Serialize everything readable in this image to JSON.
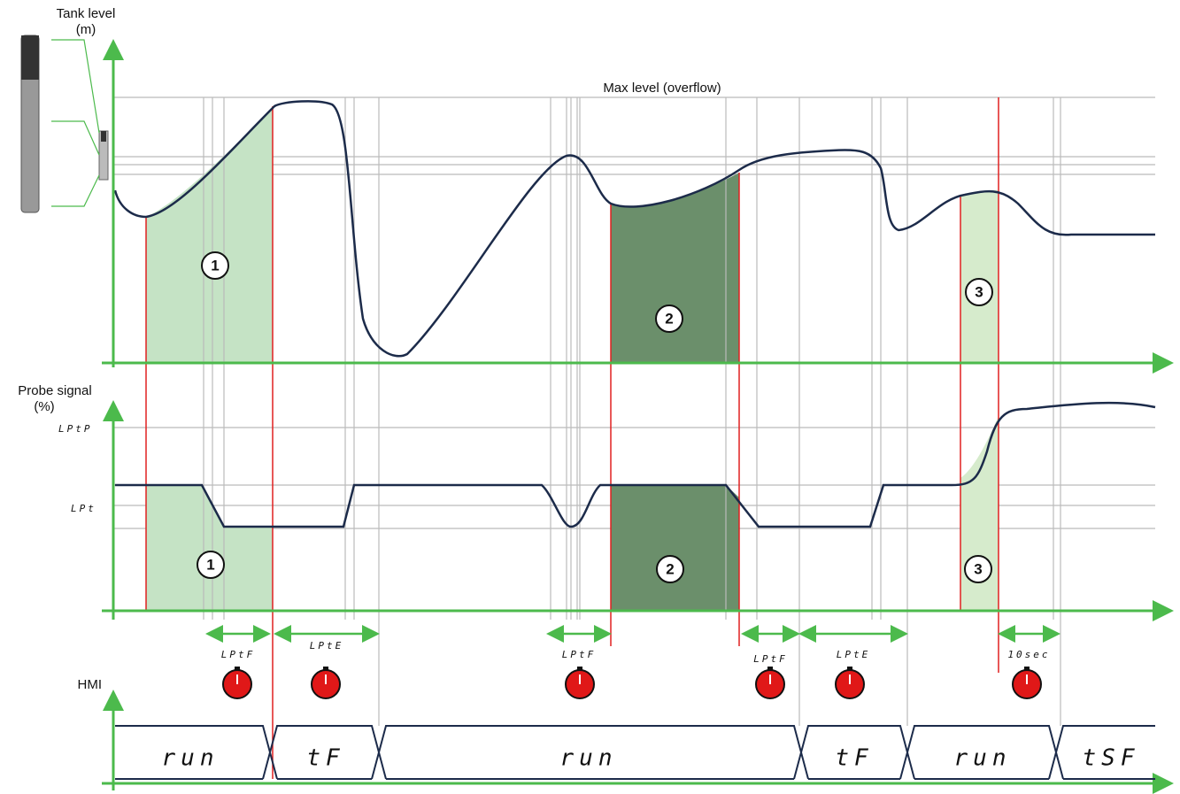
{
  "axes": {
    "tank_level": [
      "Tank level",
      "(m)"
    ],
    "max_level": "Max level (overflow)",
    "probe_signal": [
      "Probe signal",
      "(%)"
    ],
    "hmi": "HMI"
  },
  "probe_levels": [
    "LPtP",
    "LPt"
  ],
  "zones": {
    "top": [
      "1",
      "2",
      "3"
    ],
    "bottom": [
      "1",
      "2",
      "3"
    ]
  },
  "timers": [
    "LPtF",
    "LPtE",
    "LPtF",
    "LPtF",
    "LPtE",
    "10sec"
  ],
  "hmi_states": [
    "run",
    "tF",
    "run",
    "tF",
    "run",
    "tSF"
  ]
}
